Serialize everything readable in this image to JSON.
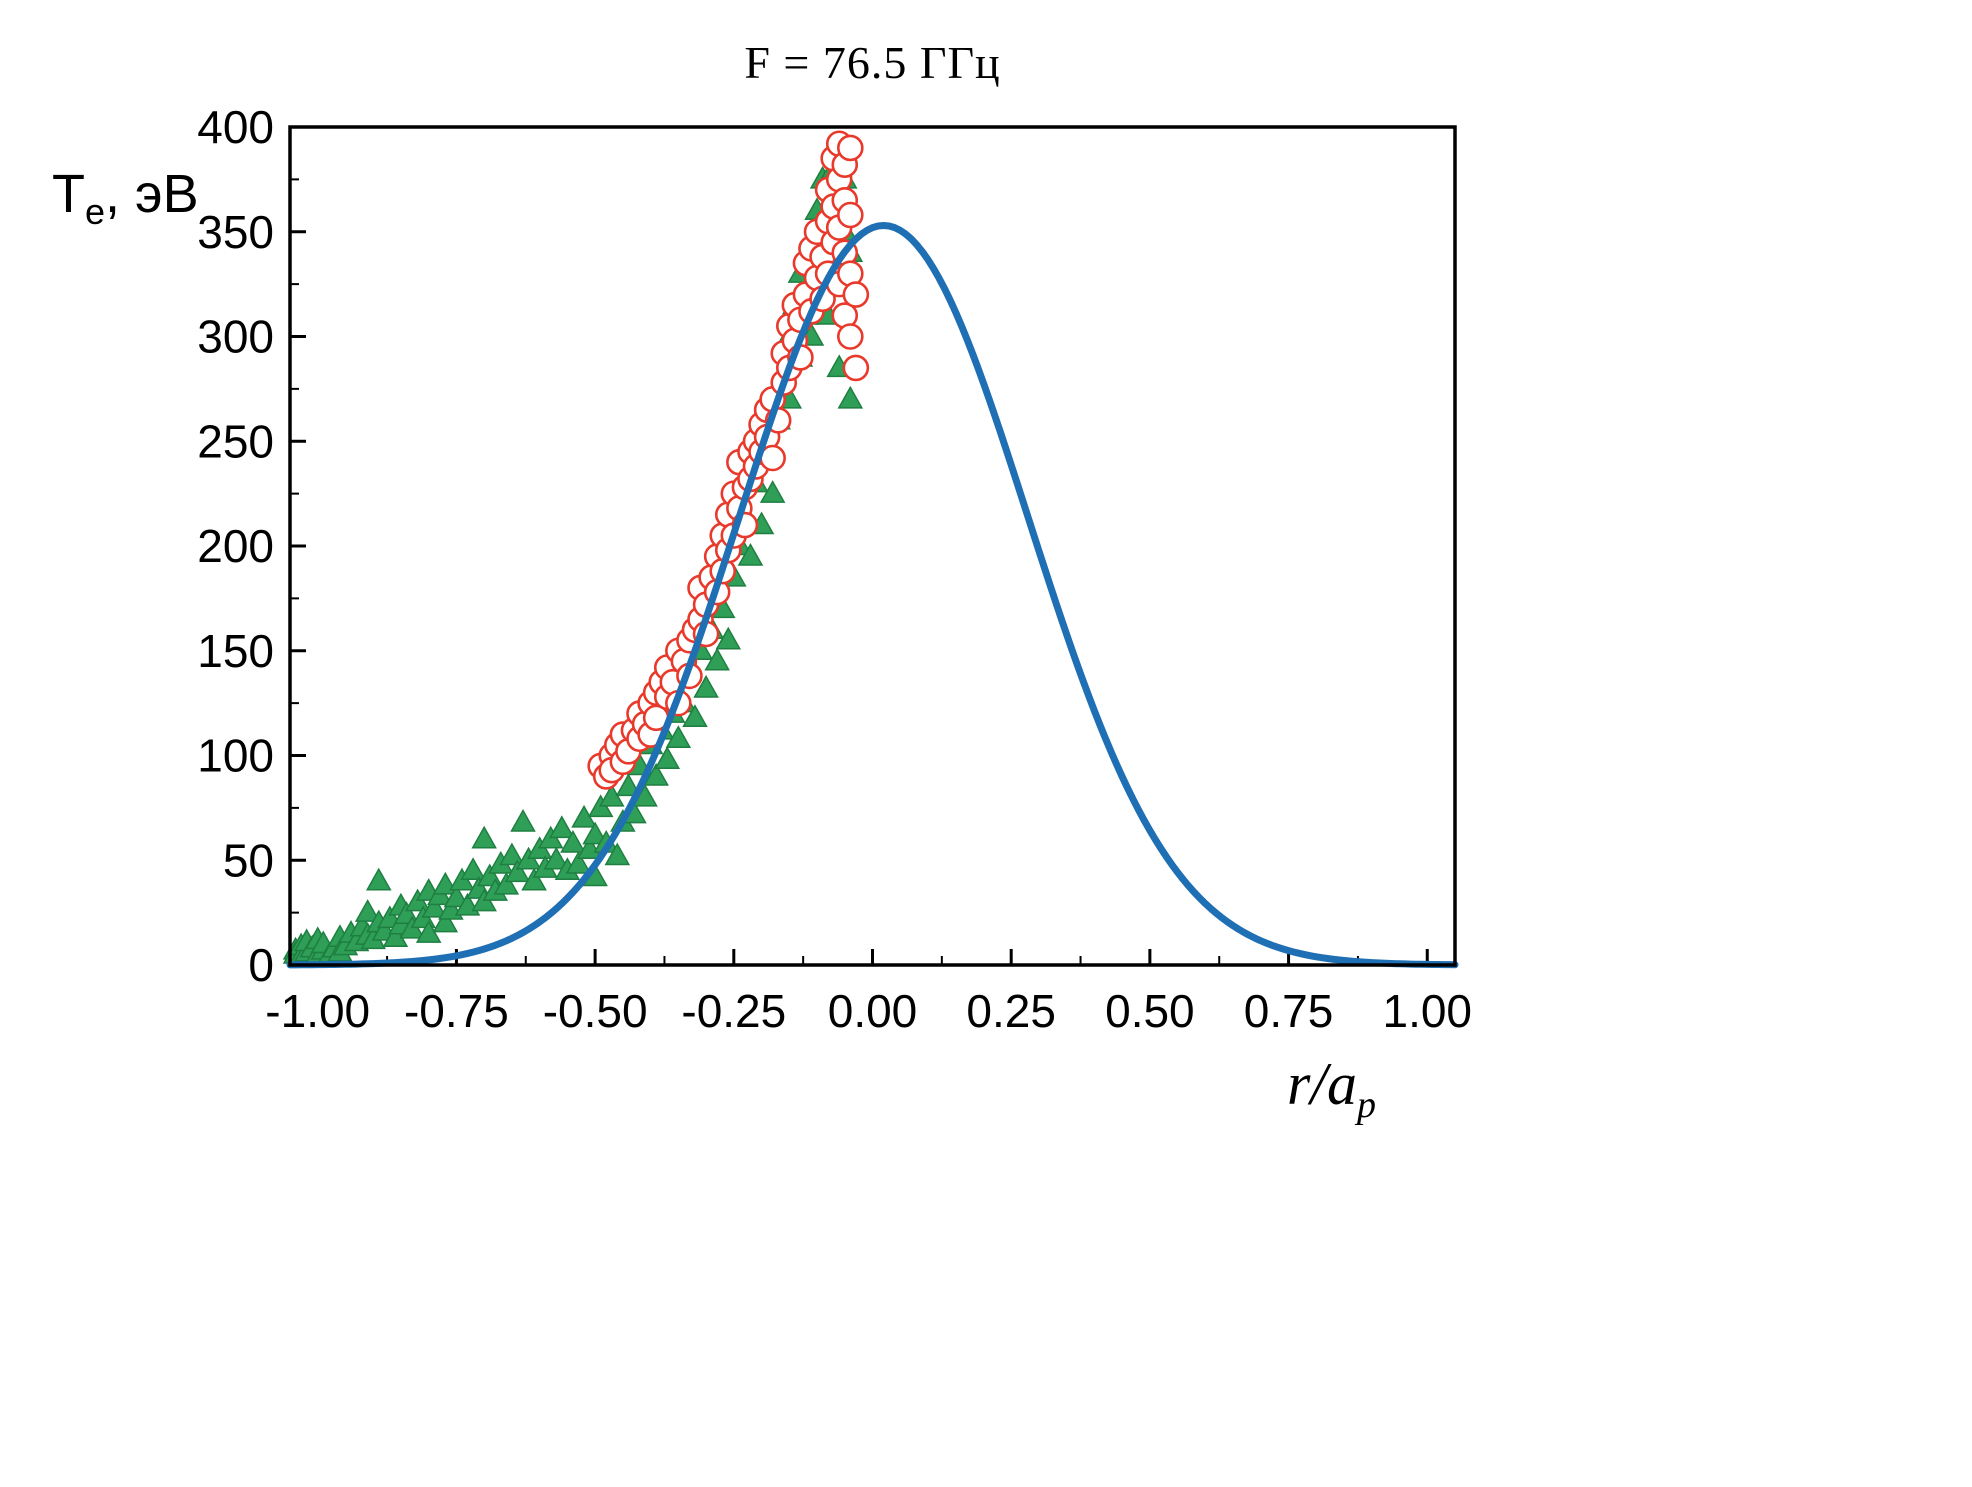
{
  "chart_data": {
    "type": "scatter",
    "title": "F = 76.5 ГГц",
    "background": "#ffffff",
    "frame_color": "#000000",
    "x_axis": {
      "label_main": "r/a",
      "label_sub": "p",
      "range": [
        -1.05,
        1.05
      ],
      "ticks": [
        -1.0,
        -0.75,
        -0.5,
        -0.25,
        0.0,
        0.25,
        0.5,
        0.75,
        1.0
      ],
      "tick_labels": [
        "-1.00",
        "-0.75",
        "-0.50",
        "-0.25",
        "0.00",
        "0.25",
        "0.50",
        "0.75",
        "1.00"
      ],
      "minor_step": 0.125,
      "grid": false
    },
    "y_axis": {
      "label_main": "T",
      "label_sub": "e",
      "label_rest": ", эВ",
      "range": [
        0,
        400
      ],
      "ticks": [
        0,
        50,
        100,
        150,
        200,
        250,
        300,
        350,
        400
      ],
      "tick_labels": [
        "0",
        "50",
        "100",
        "150",
        "200",
        "250",
        "300",
        "350",
        "400"
      ],
      "minor_step": 25,
      "grid": false
    },
    "legend": "none",
    "series": [
      {
        "name": "green-triangles",
        "marker": "triangle",
        "color": "#2f9e57",
        "edge_color": "#1e7f41",
        "points": [
          [
            -1.04,
            7
          ],
          [
            -1.04,
            5
          ],
          [
            -1.03,
            9
          ],
          [
            -1.03,
            4
          ],
          [
            -1.02,
            6
          ],
          [
            -1.02,
            11
          ],
          [
            -1.01,
            8
          ],
          [
            -1.0,
            5
          ],
          [
            -1.0,
            12
          ],
          [
            -0.99,
            7
          ],
          [
            -0.99,
            10
          ],
          [
            -0.98,
            4
          ],
          [
            -0.97,
            8
          ],
          [
            -0.96,
            13
          ],
          [
            -0.96,
            6
          ],
          [
            -0.95,
            9
          ],
          [
            -0.94,
            15
          ],
          [
            -0.93,
            11
          ],
          [
            -0.92,
            18
          ],
          [
            -0.91,
            14
          ],
          [
            -0.91,
            25
          ],
          [
            -0.9,
            12
          ],
          [
            -0.89,
            20
          ],
          [
            -0.89,
            40
          ],
          [
            -0.88,
            16
          ],
          [
            -0.87,
            22
          ],
          [
            -0.86,
            13
          ],
          [
            -0.85,
            19
          ],
          [
            -0.85,
            28
          ],
          [
            -0.84,
            24
          ],
          [
            -0.83,
            17
          ],
          [
            -0.82,
            30
          ],
          [
            -0.81,
            22
          ],
          [
            -0.8,
            35
          ],
          [
            -0.8,
            15
          ],
          [
            -0.79,
            27
          ],
          [
            -0.78,
            33
          ],
          [
            -0.77,
            20
          ],
          [
            -0.77,
            38
          ],
          [
            -0.76,
            26
          ],
          [
            -0.75,
            32
          ],
          [
            -0.74,
            40
          ],
          [
            -0.73,
            28
          ],
          [
            -0.72,
            45
          ],
          [
            -0.71,
            36
          ],
          [
            -0.7,
            60
          ],
          [
            -0.7,
            30
          ],
          [
            -0.69,
            42
          ],
          [
            -0.68,
            35
          ],
          [
            -0.67,
            48
          ],
          [
            -0.66,
            38
          ],
          [
            -0.65,
            52
          ],
          [
            -0.64,
            44
          ],
          [
            -0.63,
            68
          ],
          [
            -0.62,
            50
          ],
          [
            -0.61,
            40
          ],
          [
            -0.6,
            55
          ],
          [
            -0.59,
            46
          ],
          [
            -0.58,
            60
          ],
          [
            -0.57,
            50
          ],
          [
            -0.56,
            65
          ],
          [
            -0.55,
            45
          ],
          [
            -0.54,
            58
          ],
          [
            -0.53,
            48
          ],
          [
            -0.52,
            70
          ],
          [
            -0.51,
            55
          ],
          [
            -0.5,
            62
          ],
          [
            -0.5,
            42
          ],
          [
            -0.49,
            75
          ],
          [
            -0.48,
            58
          ],
          [
            -0.47,
            80
          ],
          [
            -0.46,
            52
          ],
          [
            -0.45,
            68
          ],
          [
            -0.44,
            85
          ],
          [
            -0.43,
            72
          ],
          [
            -0.42,
            95
          ],
          [
            -0.41,
            80
          ],
          [
            -0.4,
            105
          ],
          [
            -0.39,
            90
          ],
          [
            -0.38,
            112
          ],
          [
            -0.37,
            98
          ],
          [
            -0.36,
            120
          ],
          [
            -0.35,
            108
          ],
          [
            -0.34,
            125
          ],
          [
            -0.33,
            140
          ],
          [
            -0.32,
            118
          ],
          [
            -0.31,
            150
          ],
          [
            -0.3,
            132
          ],
          [
            -0.29,
            160
          ],
          [
            -0.28,
            145
          ],
          [
            -0.27,
            170
          ],
          [
            -0.26,
            155
          ],
          [
            -0.25,
            185
          ],
          [
            -0.24,
            200
          ],
          [
            -0.23,
            215
          ],
          [
            -0.22,
            195
          ],
          [
            -0.21,
            230
          ],
          [
            -0.2,
            210
          ],
          [
            -0.19,
            245
          ],
          [
            -0.18,
            225
          ],
          [
            -0.17,
            260
          ],
          [
            -0.16,
            280
          ],
          [
            -0.15,
            300
          ],
          [
            -0.15,
            270
          ],
          [
            -0.14,
            315
          ],
          [
            -0.13,
            290
          ],
          [
            -0.13,
            330
          ],
          [
            -0.12,
            310
          ],
          [
            -0.11,
            345
          ],
          [
            -0.11,
            300
          ],
          [
            -0.1,
            360
          ],
          [
            -0.1,
            325
          ],
          [
            -0.09,
            375
          ],
          [
            -0.09,
            340
          ],
          [
            -0.08,
            355
          ],
          [
            -0.08,
            310
          ],
          [
            -0.07,
            380
          ],
          [
            -0.07,
            330
          ],
          [
            -0.06,
            365
          ],
          [
            -0.06,
            285
          ],
          [
            -0.05,
            350
          ],
          [
            -0.05,
            375
          ],
          [
            -0.04,
            270
          ],
          [
            -0.04,
            340
          ]
        ]
      },
      {
        "name": "red-open-circles",
        "marker": "open-circle",
        "color": "#e8392b",
        "fill": "#ffffff",
        "points": [
          [
            -0.49,
            95
          ],
          [
            -0.48,
            90
          ],
          [
            -0.47,
            100
          ],
          [
            -0.47,
            93
          ],
          [
            -0.46,
            105
          ],
          [
            -0.45,
            97
          ],
          [
            -0.45,
            110
          ],
          [
            -0.44,
            102
          ],
          [
            -0.43,
            112
          ],
          [
            -0.42,
            108
          ],
          [
            -0.42,
            120
          ],
          [
            -0.41,
            115
          ],
          [
            -0.4,
            125
          ],
          [
            -0.4,
            110
          ],
          [
            -0.39,
            130
          ],
          [
            -0.39,
            118
          ],
          [
            -0.38,
            135
          ],
          [
            -0.37,
            128
          ],
          [
            -0.37,
            142
          ],
          [
            -0.36,
            135
          ],
          [
            -0.35,
            150
          ],
          [
            -0.35,
            125
          ],
          [
            -0.34,
            145
          ],
          [
            -0.33,
            155
          ],
          [
            -0.33,
            138
          ],
          [
            -0.32,
            160
          ],
          [
            -0.31,
            165
          ],
          [
            -0.31,
            180
          ],
          [
            -0.3,
            172
          ],
          [
            -0.3,
            158
          ],
          [
            -0.29,
            185
          ],
          [
            -0.28,
            178
          ],
          [
            -0.28,
            195
          ],
          [
            -0.27,
            188
          ],
          [
            -0.27,
            205
          ],
          [
            -0.26,
            198
          ],
          [
            -0.26,
            215
          ],
          [
            -0.25,
            205
          ],
          [
            -0.25,
            225
          ],
          [
            -0.24,
            218
          ],
          [
            -0.24,
            240
          ],
          [
            -0.23,
            228
          ],
          [
            -0.23,
            210
          ],
          [
            -0.22,
            245
          ],
          [
            -0.22,
            232
          ],
          [
            -0.21,
            250
          ],
          [
            -0.21,
            238
          ],
          [
            -0.2,
            258
          ],
          [
            -0.2,
            245
          ],
          [
            -0.19,
            265
          ],
          [
            -0.19,
            252
          ],
          [
            -0.18,
            270
          ],
          [
            -0.18,
            242
          ],
          [
            -0.17,
            260
          ],
          [
            -0.16,
            278
          ],
          [
            -0.16,
            292
          ],
          [
            -0.15,
            285
          ],
          [
            -0.15,
            305
          ],
          [
            -0.14,
            298
          ],
          [
            -0.14,
            315
          ],
          [
            -0.13,
            308
          ],
          [
            -0.13,
            290
          ],
          [
            -0.12,
            320
          ],
          [
            -0.12,
            335
          ],
          [
            -0.11,
            312
          ],
          [
            -0.11,
            342
          ],
          [
            -0.1,
            328
          ],
          [
            -0.1,
            350
          ],
          [
            -0.09,
            338
          ],
          [
            -0.09,
            318
          ],
          [
            -0.08,
            355
          ],
          [
            -0.08,
            330
          ],
          [
            -0.08,
            370
          ],
          [
            -0.07,
            345
          ],
          [
            -0.07,
            362
          ],
          [
            -0.07,
            385
          ],
          [
            -0.06,
            352
          ],
          [
            -0.06,
            375
          ],
          [
            -0.06,
            392
          ],
          [
            -0.06,
            325
          ],
          [
            -0.05,
            340
          ],
          [
            -0.05,
            365
          ],
          [
            -0.05,
            382
          ],
          [
            -0.05,
            310
          ],
          [
            -0.04,
            330
          ],
          [
            -0.04,
            358
          ],
          [
            -0.04,
            390
          ],
          [
            -0.04,
            300
          ],
          [
            -0.03,
            320
          ],
          [
            -0.03,
            285
          ]
        ]
      },
      {
        "name": "blue-fit-curve",
        "marker": "none",
        "line": true,
        "color": "#1f6fb4",
        "width": 7,
        "model": {
          "kind": "gaussian",
          "amplitude": 353,
          "center": 0.02,
          "sigma": 0.26
        },
        "points": [
          [
            -1.0,
            0.2
          ],
          [
            -0.9,
            0.7
          ],
          [
            -0.8,
            2.4
          ],
          [
            -0.7,
            7.6
          ],
          [
            -0.6,
            20.6
          ],
          [
            -0.5,
            47.8
          ],
          [
            -0.4,
            95.7
          ],
          [
            -0.3,
            165.5
          ],
          [
            -0.2,
            246.8
          ],
          [
            -0.1,
            317.3
          ],
          [
            0.0,
            352.0
          ],
          [
            0.1,
            336.7
          ],
          [
            0.2,
            277.8
          ],
          [
            0.3,
            197.7
          ],
          [
            0.4,
            121.3
          ],
          [
            0.5,
            64.2
          ],
          [
            0.6,
            29.3
          ],
          [
            0.7,
            11.5
          ],
          [
            0.8,
            3.9
          ],
          [
            0.9,
            1.1
          ],
          [
            1.0,
            0.3
          ]
        ]
      }
    ]
  }
}
